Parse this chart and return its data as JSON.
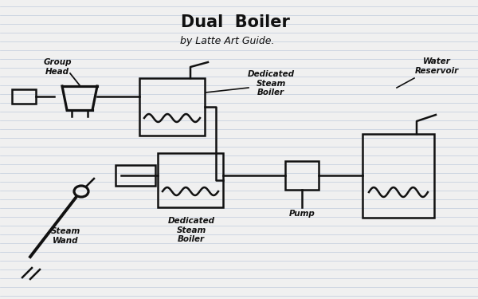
{
  "title": "Dual  Boiler",
  "subtitle": "by Latte Art Guide.",
  "bg_color": "#f0f0f0",
  "line_color": "#111111",
  "ruled_line_color": "#c0ccdd",
  "title_font": 15,
  "label_font": 7.5,
  "labels": {
    "group_head": "Group\nHead",
    "steam_wand": "Steam\nWand",
    "dedicated_steam_boiler_top": "Dedicated\nSteam\nBoiler",
    "dedicated_steam_boiler_bot": "Dedicated\nSteam\nBoiler",
    "water_reservoir": "Water\nReservoir",
    "pump": "Pump"
  }
}
